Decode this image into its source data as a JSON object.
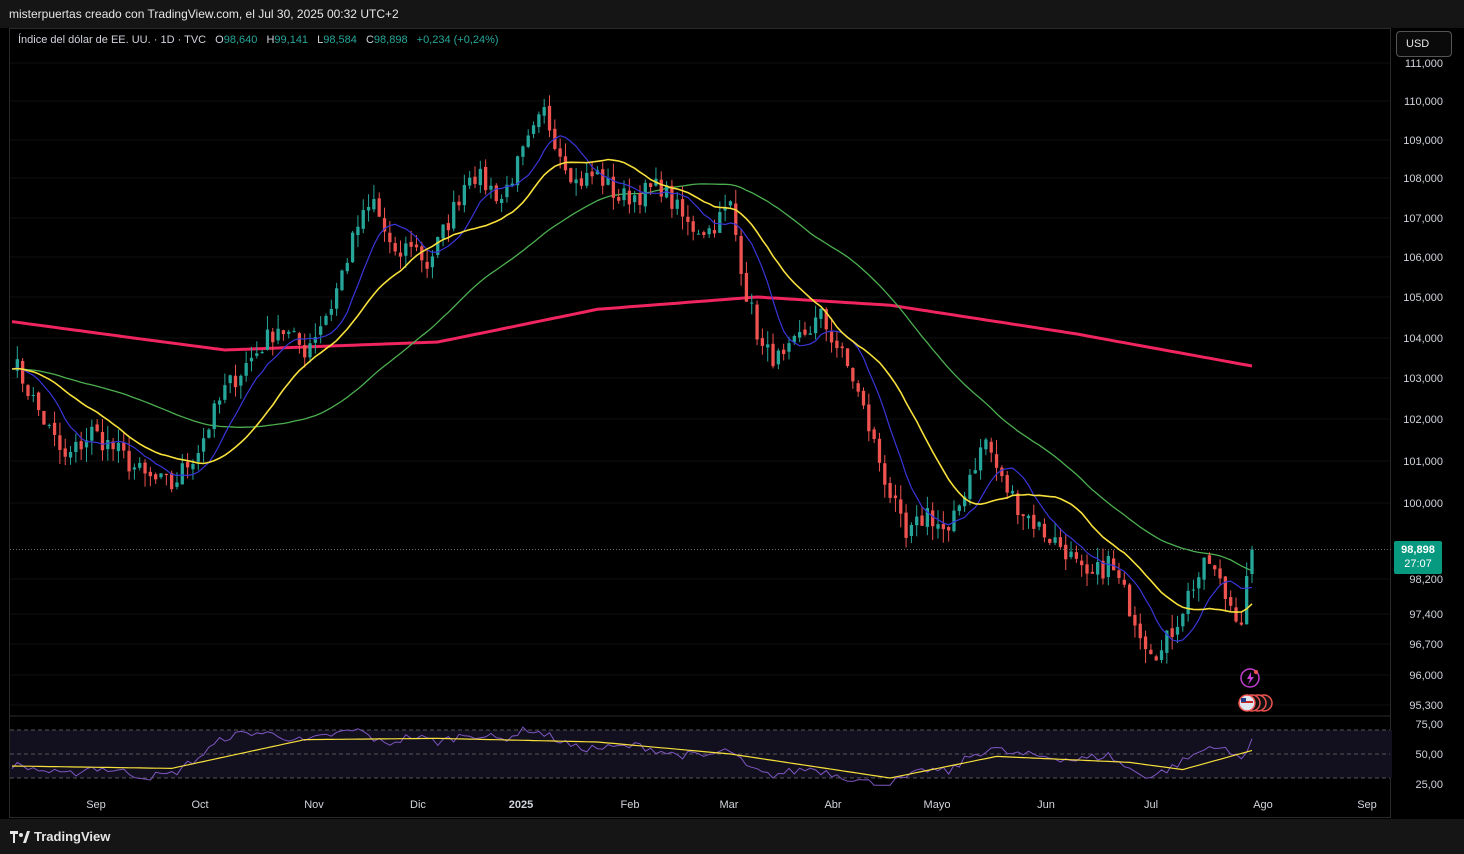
{
  "header": {
    "attribution": "misterpuertas creado con TradingView.com, el Jul 30, 2025 00:32 UTC+2"
  },
  "legend": {
    "symbol": "Índice del dólar de EE. UU. · 1D · TVC",
    "open_label": "O",
    "open": "98,640",
    "high_label": "H",
    "high": "99,141",
    "low_label": "L",
    "low": "98,584",
    "close_label": "C",
    "close": "98,898",
    "change": "+0,234 (+0,24%)"
  },
  "currency_button": "USD",
  "last_price": {
    "value": "98,898",
    "countdown": "27:07"
  },
  "footer": {
    "brand": "TradingView"
  },
  "colors": {
    "up": "#26a69a",
    "down": "#ef5350",
    "ma_short": "#3935d9",
    "ma_mid": "#f7e03b",
    "ma_long": "#4caf50",
    "ma_200": "#f0245f",
    "rsi": "#7e57c2",
    "rsi_ma": "#f7e03b"
  },
  "chart_data": [
    {
      "type": "candlestick",
      "series_main": "Índice del dólar de EE. UU.",
      "y_ticks": [
        "111,000",
        "110,000",
        "109,000",
        "108,000",
        "107,000",
        "106,000",
        "105,000",
        "104,000",
        "103,000",
        "102,000",
        "101,000",
        "100,000",
        "98,200",
        "97,400",
        "96,700",
        "96,000",
        "95,300"
      ],
      "y_tick_values": [
        111,
        110,
        109,
        108,
        107,
        106,
        105,
        104,
        103,
        102,
        101,
        100,
        98.2,
        97.4,
        96.7,
        96,
        95.3
      ],
      "x_ticks": [
        "Sep",
        "Oct",
        "Nov",
        "Dic",
        "2025",
        "Feb",
        "Mar",
        "Abr",
        "Mayo",
        "Jun",
        "Jul",
        "Ago",
        "Sep"
      ],
      "ylim": [
        95.3,
        111
      ],
      "last_close": 98.898,
      "price_path": [
        [
          0,
          103.5
        ],
        [
          5,
          102.2
        ],
        [
          10,
          101.0
        ],
        [
          15,
          101.7
        ],
        [
          20,
          101.2
        ],
        [
          25,
          100.6
        ],
        [
          30,
          100.4
        ],
        [
          35,
          101.3
        ],
        [
          40,
          102.7
        ],
        [
          45,
          103.5
        ],
        [
          50,
          104.3
        ],
        [
          55,
          103.7
        ],
        [
          60,
          104.8
        ],
        [
          65,
          106.8
        ],
        [
          68,
          107.4
        ],
        [
          72,
          105.9
        ],
        [
          75,
          106.4
        ],
        [
          78,
          105.8
        ],
        [
          82,
          106.9
        ],
        [
          86,
          108.2
        ],
        [
          92,
          107.5
        ],
        [
          97,
          108.9
        ],
        [
          100,
          109.7
        ],
        [
          103,
          108.7
        ],
        [
          106,
          107.9
        ],
        [
          110,
          108.1
        ],
        [
          114,
          107.5
        ],
        [
          118,
          107.6
        ],
        [
          122,
          107.8
        ],
        [
          127,
          106.8
        ],
        [
          131,
          106.7
        ],
        [
          135,
          107.3
        ],
        [
          138,
          105.1
        ],
        [
          141,
          103.7
        ],
        [
          145,
          103.4
        ],
        [
          148,
          104.0
        ],
        [
          152,
          104.5
        ],
        [
          155,
          103.8
        ],
        [
          158,
          103.0
        ],
        [
          161,
          101.8
        ],
        [
          164,
          100.6
        ],
        [
          168,
          99.1
        ],
        [
          172,
          99.8
        ],
        [
          176,
          99.2
        ],
        [
          180,
          100.7
        ],
        [
          183,
          101.5
        ],
        [
          186,
          100.5
        ],
        [
          190,
          99.8
        ],
        [
          194,
          99.3
        ],
        [
          198,
          98.9
        ],
        [
          202,
          98.1
        ],
        [
          206,
          98.6
        ],
        [
          210,
          97.6
        ],
        [
          213,
          96.8
        ],
        [
          216,
          96.5
        ],
        [
          219,
          97.3
        ],
        [
          222,
          98.1
        ],
        [
          225,
          98.6
        ],
        [
          228,
          97.8
        ],
        [
          231,
          97.3
        ],
        [
          233,
          98.9
        ]
      ],
      "ma_200_path": [
        [
          0,
          104.4
        ],
        [
          40,
          103.7
        ],
        [
          80,
          103.9
        ],
        [
          110,
          104.7
        ],
        [
          140,
          105.0
        ],
        [
          165,
          104.8
        ],
        [
          200,
          104.1
        ],
        [
          233,
          103.3
        ]
      ]
    },
    {
      "type": "line",
      "indicator": "RSI",
      "y_ticks": [
        "75,00",
        "50,00",
        "25,00"
      ],
      "ylim": [
        20,
        80
      ],
      "rsi_path": [
        [
          0,
          41
        ],
        [
          5,
          37
        ],
        [
          10,
          32
        ],
        [
          15,
          39
        ],
        [
          20,
          36
        ],
        [
          25,
          31
        ],
        [
          30,
          33
        ],
        [
          35,
          47
        ],
        [
          40,
          64
        ],
        [
          45,
          68
        ],
        [
          50,
          66
        ],
        [
          55,
          60
        ],
        [
          60,
          66
        ],
        [
          65,
          70
        ],
        [
          70,
          58
        ],
        [
          75,
          65
        ],
        [
          80,
          60
        ],
        [
          86,
          67
        ],
        [
          92,
          62
        ],
        [
          97,
          71
        ],
        [
          102,
          63
        ],
        [
          106,
          55
        ],
        [
          112,
          55
        ],
        [
          118,
          57
        ],
        [
          124,
          50
        ],
        [
          130,
          48
        ],
        [
          135,
          53
        ],
        [
          138,
          39
        ],
        [
          142,
          32
        ],
        [
          146,
          35
        ],
        [
          150,
          38
        ],
        [
          155,
          33
        ],
        [
          160,
          27
        ],
        [
          164,
          24
        ],
        [
          168,
          30
        ],
        [
          172,
          37
        ],
        [
          176,
          35
        ],
        [
          180,
          48
        ],
        [
          184,
          55
        ],
        [
          188,
          50
        ],
        [
          194,
          48
        ],
        [
          200,
          45
        ],
        [
          206,
          49
        ],
        [
          210,
          37
        ],
        [
          214,
          31
        ],
        [
          218,
          39
        ],
        [
          222,
          49
        ],
        [
          226,
          58
        ],
        [
          229,
          50
        ],
        [
          231,
          46
        ],
        [
          233,
          63
        ]
      ],
      "rsi_ma_path": [
        [
          0,
          40
        ],
        [
          30,
          38
        ],
        [
          55,
          62
        ],
        [
          80,
          63
        ],
        [
          110,
          60
        ],
        [
          135,
          50
        ],
        [
          165,
          30
        ],
        [
          185,
          48
        ],
        [
          210,
          43
        ],
        [
          220,
          37
        ],
        [
          233,
          53
        ]
      ]
    }
  ]
}
